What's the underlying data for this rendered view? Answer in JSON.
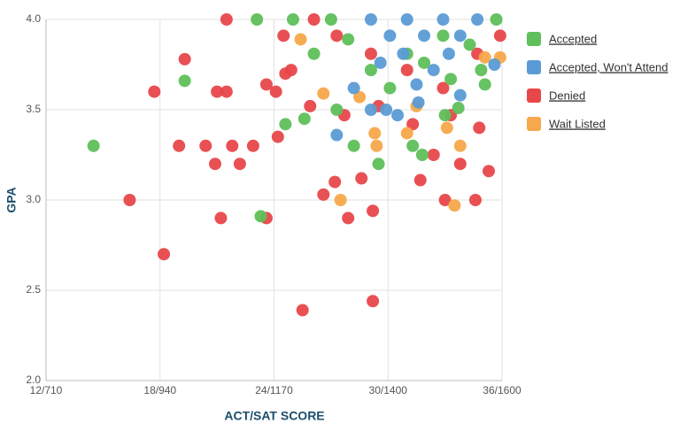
{
  "chart_data": {
    "type": "scatter",
    "x_label": "ACT/SAT SCORE",
    "y_label": "GPA",
    "xlim": [
      12,
      36
    ],
    "ylim": [
      2.0,
      4.0
    ],
    "xticks": [
      {
        "value": 12,
        "label": "12/710"
      },
      {
        "value": 18,
        "label": "18/940"
      },
      {
        "value": 24,
        "label": "24/1170"
      },
      {
        "value": 30,
        "label": "30/1400"
      },
      {
        "value": 36,
        "label": "36/1600"
      }
    ],
    "yticks": [
      {
        "value": 2.0,
        "label": "2.0"
      },
      2.5,
      {
        "value": 3.0,
        "label": "3.0"
      },
      3.5,
      {
        "value": 4.0,
        "label": "4.0"
      }
    ],
    "grid": true,
    "legend": "right",
    "series": [
      {
        "name": "Denied",
        "color": "#e8474a",
        "x": [
          21.5,
          17.7,
          19.3,
          19.0,
          16.4,
          18.2,
          20.4,
          20.9,
          21.2,
          22.2,
          22.9,
          23.6,
          24.1,
          24.2,
          24.6,
          25.5,
          29.2,
          27.9,
          29.2,
          26.6,
          27.2,
          28.6,
          31.7,
          33.0,
          34.6,
          35.3,
          34.8,
          33.8,
          32.4,
          26.1,
          27.3,
          29.1,
          31.0,
          32.9,
          34.7,
          35.9,
          24.9,
          25.9,
          27.7,
          29.5,
          31.3,
          33.3,
          21.5,
          21.0,
          24.5,
          21.8,
          23.6
        ],
        "values": [
          4.0,
          3.6,
          3.78,
          3.3,
          3.0,
          2.7,
          3.3,
          3.2,
          2.9,
          3.2,
          3.3,
          3.64,
          3.6,
          3.35,
          3.7,
          2.39,
          2.44,
          2.9,
          2.94,
          3.03,
          3.1,
          3.12,
          3.11,
          3.0,
          3.0,
          3.16,
          3.4,
          3.2,
          3.25,
          4.0,
          3.91,
          3.81,
          3.72,
          3.62,
          3.81,
          3.91,
          3.72,
          3.52,
          3.47,
          3.52,
          3.42,
          3.47,
          3.6,
          3.6,
          3.91,
          3.3,
          2.9
        ]
      },
      {
        "name": "Wait Listed",
        "color": "#f7a84a",
        "x": [
          33.5,
          27.5,
          33.8,
          33.1,
          29.4,
          31.0,
          29.3,
          25.4,
          35.1,
          26.6,
          28.5,
          35.9,
          31.5
        ],
        "values": [
          2.97,
          3.0,
          3.3,
          3.4,
          3.3,
          3.37,
          3.37,
          3.89,
          3.79,
          3.59,
          3.57,
          3.79,
          3.52
        ]
      },
      {
        "name": "Accepted",
        "color": "#5fbf5a",
        "x": [
          14.5,
          19.3,
          23.1,
          25.0,
          23.3,
          24.6,
          25.6,
          27.3,
          29.5,
          28.2,
          31.3,
          31.8,
          33.0,
          33.7,
          35.1,
          35.7,
          27.0,
          29.1,
          30.1,
          31.0,
          32.9,
          34.3,
          26.1,
          27.9,
          31.9,
          33.3,
          34.9
        ],
        "values": [
          3.3,
          3.66,
          4.0,
          4.0,
          2.91,
          3.42,
          3.45,
          3.5,
          3.2,
          3.3,
          3.3,
          3.25,
          3.47,
          3.51,
          3.64,
          4.0,
          4.0,
          3.72,
          3.62,
          3.81,
          3.91,
          3.86,
          3.81,
          3.89,
          3.76,
          3.67,
          3.72
        ]
      },
      {
        "name": "Accepted, Won't Attend",
        "color": "#5b9bd5",
        "x": [
          27.3,
          29.1,
          30.1,
          31.0,
          31.9,
          32.9,
          33.8,
          34.7,
          30.5,
          31.6,
          29.9,
          29.1,
          33.8,
          35.6,
          28.2,
          30.8,
          32.4,
          31.5,
          29.6,
          33.2
        ],
        "values": [
          3.36,
          4.0,
          3.91,
          4.0,
          3.91,
          4.0,
          3.91,
          4.0,
          3.47,
          3.54,
          3.5,
          3.5,
          3.58,
          3.75,
          3.62,
          3.81,
          3.72,
          3.64,
          3.76,
          3.81
        ]
      }
    ],
    "legend_order": [
      "Accepted",
      "Accepted, Won't Attend",
      "Denied",
      "Wait Listed"
    ]
  }
}
